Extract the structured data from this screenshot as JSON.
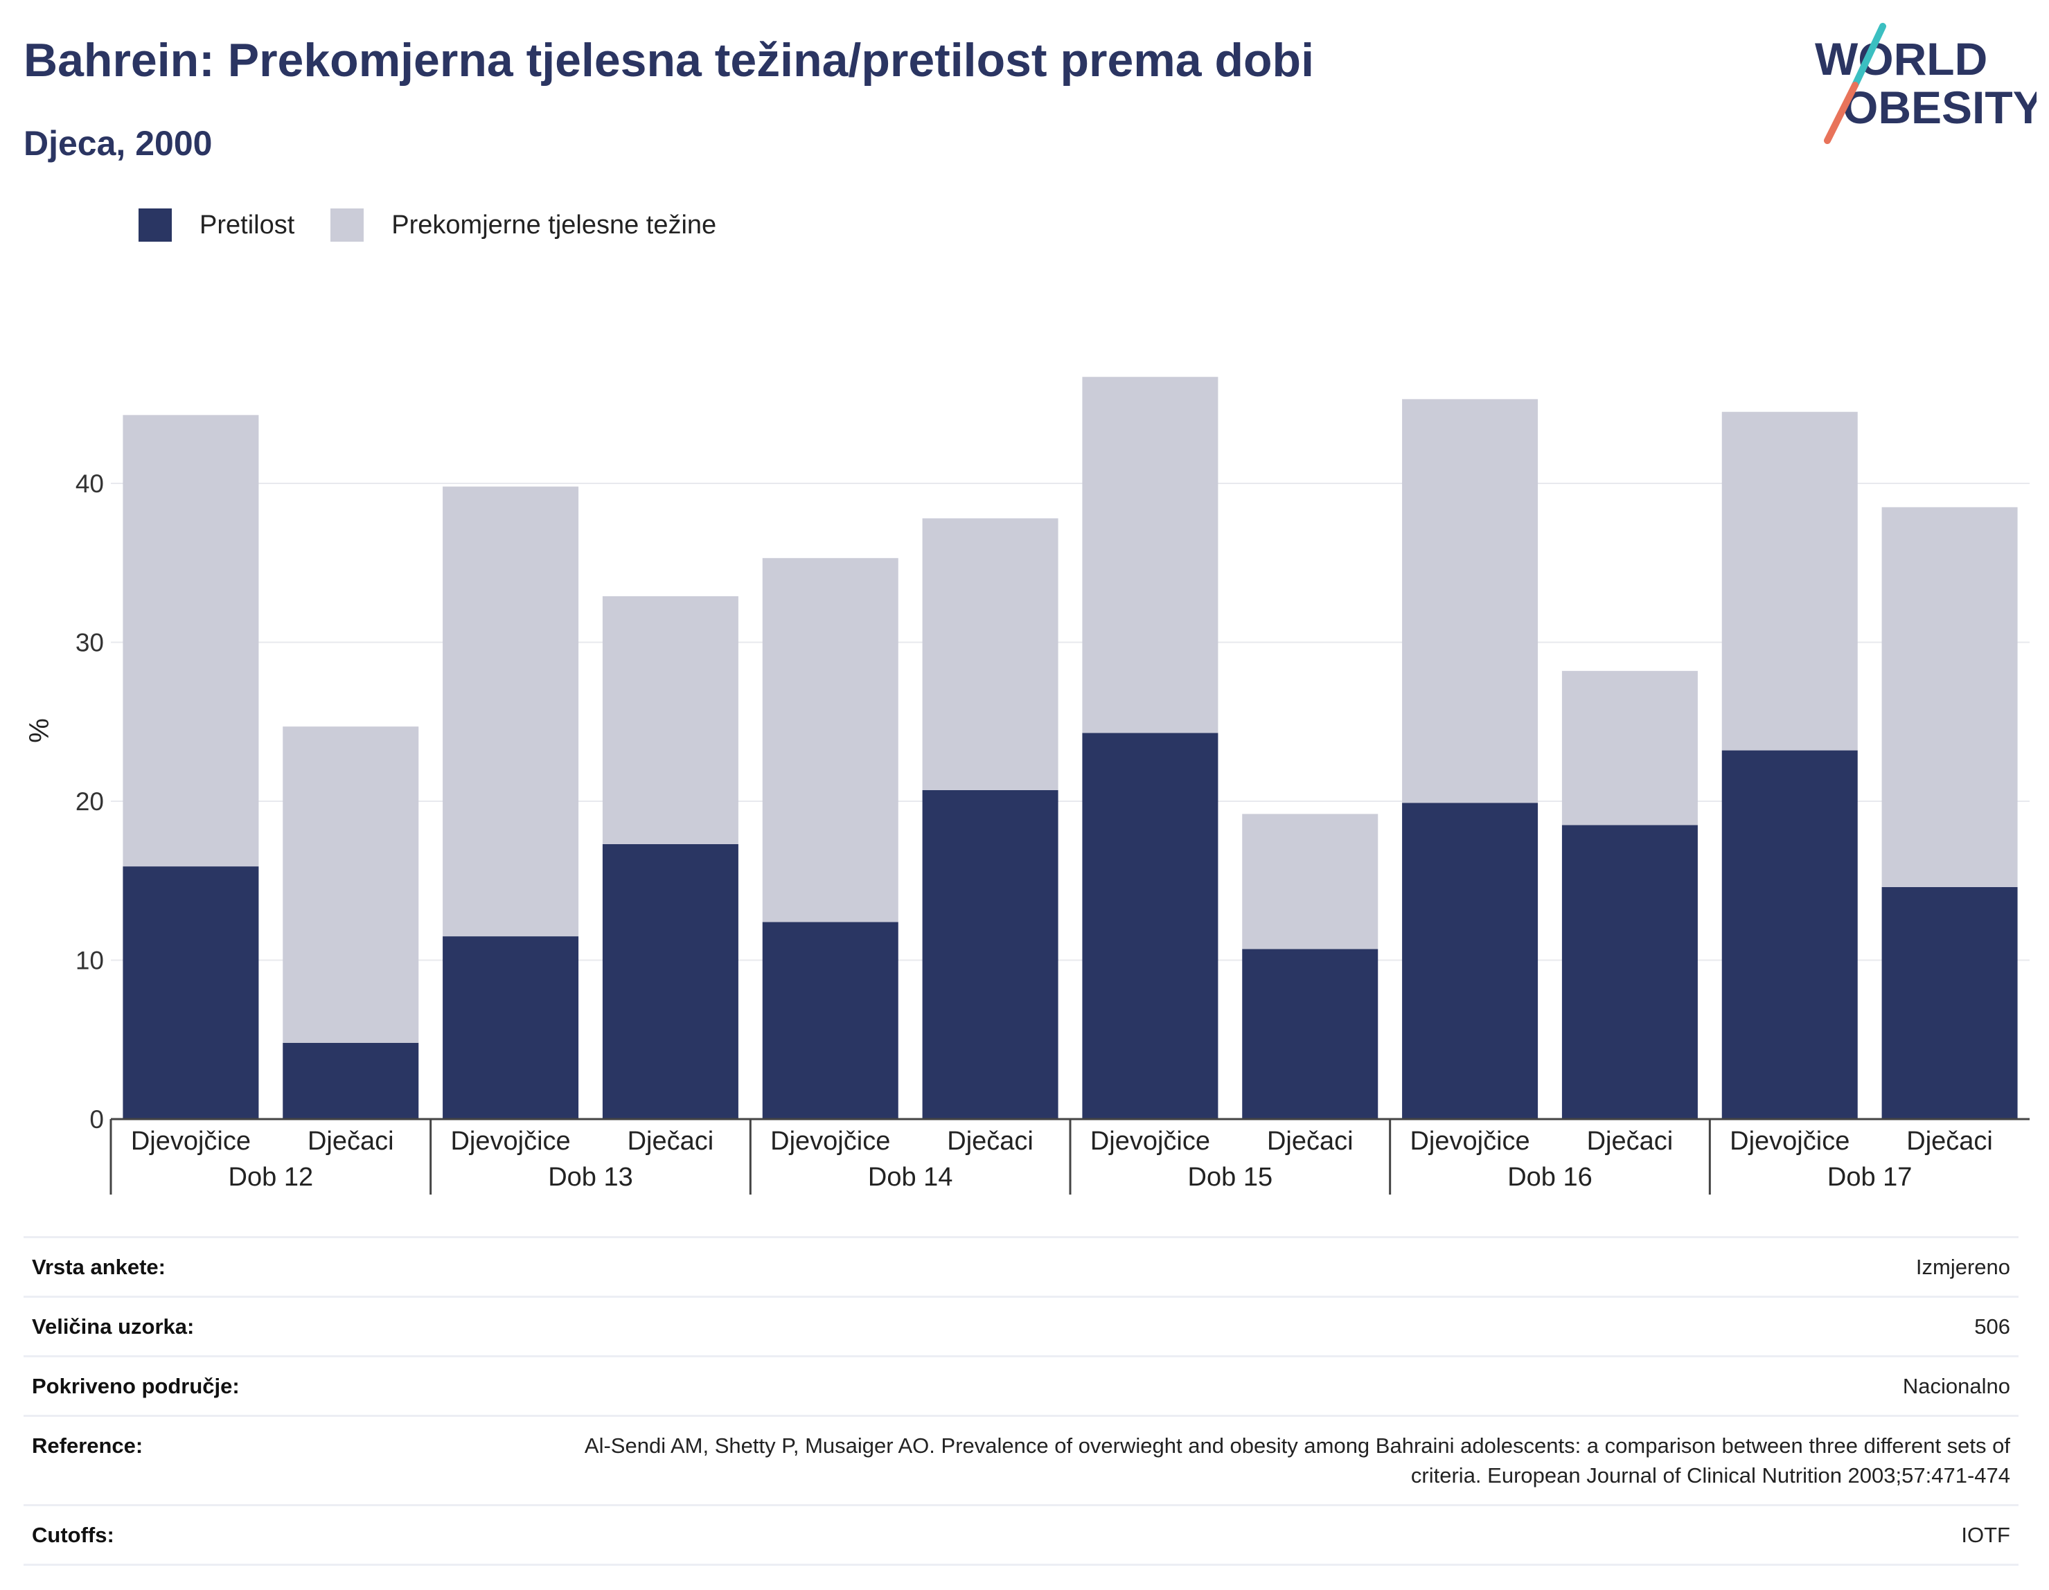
{
  "header": {
    "title": "Bahrein: Prekomjerna tjelesna težina/pretilost prema dobi",
    "subtitle": "Djeca, 2000"
  },
  "logo": {
    "line1": "WORLD",
    "line2": "OBESITY"
  },
  "colors": {
    "obesity": "#2a3663",
    "overweight": "#cbccd8",
    "title": "#2b3562",
    "accent_teal": "#3bbfc1",
    "accent_orange": "#e8735a"
  },
  "chart_data": {
    "type": "bar",
    "stacked": true,
    "ylabel": "%",
    "ylim": [
      0,
      48
    ],
    "yticks": [
      0,
      10,
      20,
      30,
      40
    ],
    "grid": true,
    "legend_position": "top-left",
    "groups": [
      "Dob 12",
      "Dob 13",
      "Dob 14",
      "Dob 15",
      "Dob 16",
      "Dob 17"
    ],
    "subcategories": [
      "Djevojčice",
      "Dječaci"
    ],
    "series": [
      {
        "name": "Pretilost",
        "values": [
          15.9,
          4.8,
          11.5,
          17.3,
          12.4,
          20.7,
          24.3,
          10.7,
          19.9,
          18.5,
          23.2,
          14.6
        ]
      },
      {
        "name": "Prekomjerne tjelesne težine",
        "values": [
          28.4,
          19.9,
          28.3,
          15.6,
          22.9,
          17.1,
          22.4,
          8.5,
          25.4,
          9.7,
          21.3,
          23.9
        ]
      }
    ]
  },
  "info": [
    {
      "label": "Vrsta ankete:",
      "value": "Izmjereno"
    },
    {
      "label": "Veličina uzorka:",
      "value": "506"
    },
    {
      "label": "Pokriveno područje:",
      "value": "Nacionalno"
    },
    {
      "label": "Reference:",
      "value": "Al-Sendi AM, Shetty P, Musaiger AO. Prevalence of overwieght and obesity among Bahraini adolescents: a comparison between three different sets of criteria. European Journal of Clinical Nutrition 2003;57:471-474"
    },
    {
      "label": "Cutoffs:",
      "value": "IOTF"
    }
  ]
}
